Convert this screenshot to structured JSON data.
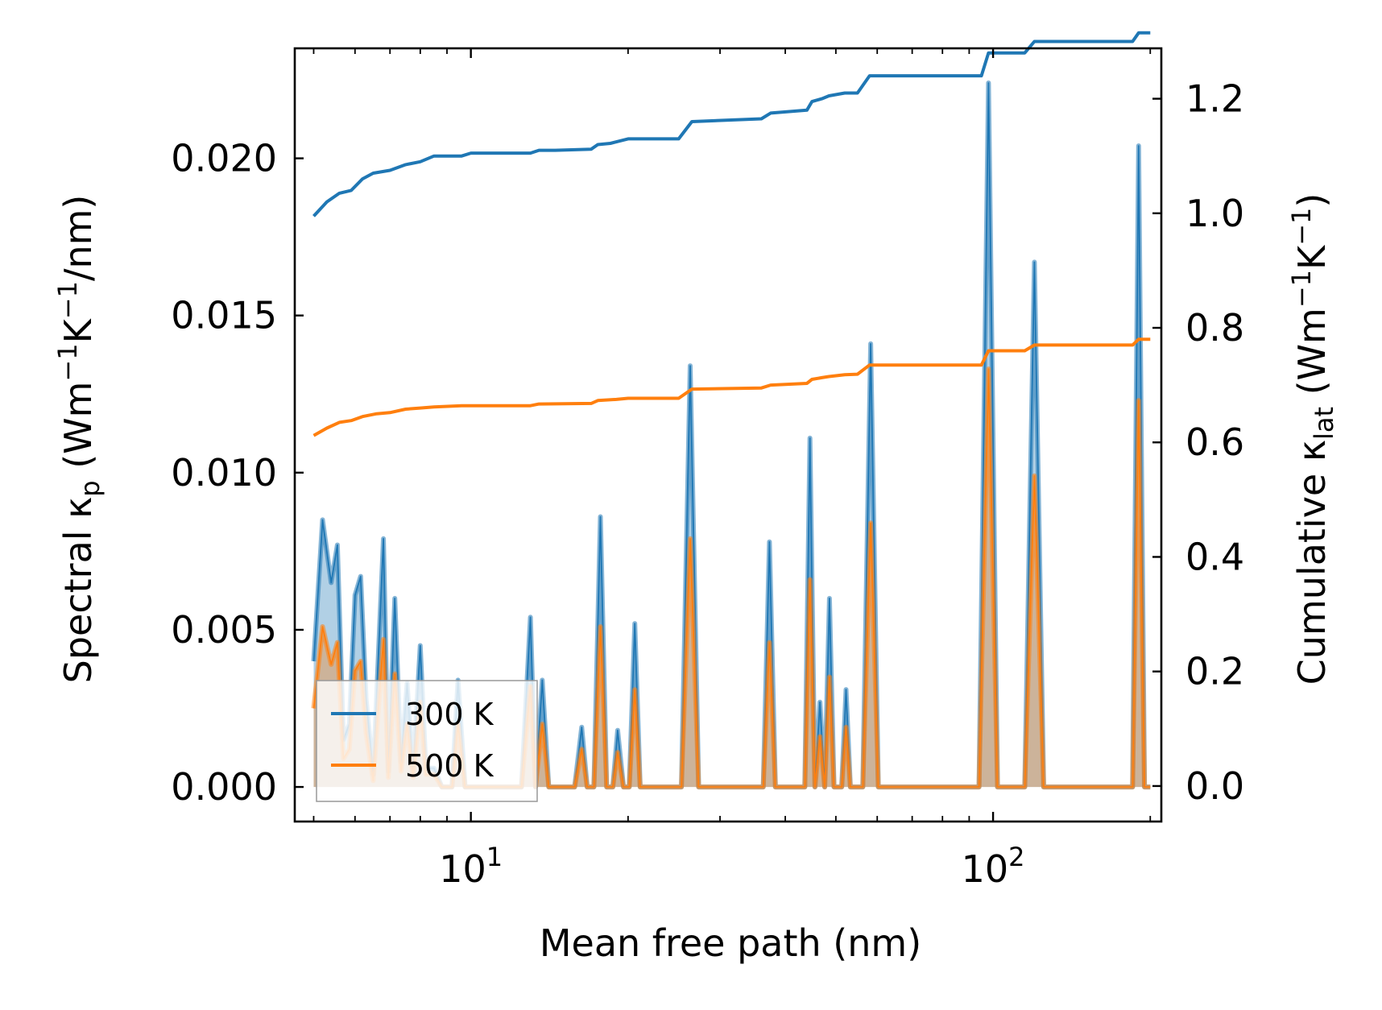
{
  "chart_data": {
    "type": "line",
    "xscale": "log",
    "xlabel": "Mean free path (nm)",
    "ylabel_left": {
      "main": "Spectral κ",
      "sub": "p",
      "units_open": " (Wm",
      "sup1": "−1",
      "mid": "K",
      "sup2": "−1",
      "units_close": "/nm)"
    },
    "ylabel_right": {
      "main": "Cumulative κ",
      "sub": "lat",
      "units_open": " (Wm",
      "sup1": "−1",
      "mid": "K",
      "sup2": "−1",
      "units_close": ")"
    },
    "xlim": [
      4.6,
      210
    ],
    "ylim_left": [
      -0.0011,
      0.0235
    ],
    "ylim_right": [
      -0.062,
      1.288
    ],
    "x_ticks": [
      {
        "value": 10,
        "base": "10",
        "exp": "1"
      },
      {
        "value": 100,
        "base": "10",
        "exp": "2"
      }
    ],
    "y_ticks_left": [
      "0.000",
      "0.005",
      "0.010",
      "0.015",
      "0.020"
    ],
    "y_ticks_right": [
      "0.0",
      "0.2",
      "0.4",
      "0.6",
      "0.8",
      "1.0",
      "1.2"
    ],
    "legend": {
      "location": "lower-left",
      "entries": [
        "300 K",
        "500 K"
      ]
    },
    "series": [
      {
        "name": "300 K",
        "color": "#1f77b4",
        "spectral": [
          [
            5,
            0.004
          ],
          [
            5.2,
            0.0085
          ],
          [
            5.4,
            0.0065
          ],
          [
            5.55,
            0.0077
          ],
          [
            5.7,
            0.0015
          ],
          [
            5.85,
            0.002
          ],
          [
            6.0,
            0.0061
          ],
          [
            6.15,
            0.0067
          ],
          [
            6.3,
            0.0028
          ],
          [
            6.5,
            0.0004
          ],
          [
            6.8,
            0.0079
          ],
          [
            6.95,
            0.0005
          ],
          [
            7.15,
            0.006
          ],
          [
            7.35,
            0.0008
          ],
          [
            7.55,
            0.0033
          ],
          [
            7.75,
            0.0005
          ],
          [
            8.0,
            0.0045
          ],
          [
            8.2,
            0.0006
          ],
          [
            8.5,
            0.0006
          ],
          [
            8.8,
            0.0
          ],
          [
            9.2,
            0.0
          ],
          [
            9.45,
            0.0034
          ],
          [
            9.75,
            0.0
          ],
          [
            12.5,
            0.0
          ],
          [
            13.0,
            0.0054
          ],
          [
            13.3,
            0.0
          ],
          [
            13.7,
            0.0034
          ],
          [
            14.1,
            0.0
          ],
          [
            15.8,
            0.0
          ],
          [
            16.3,
            0.0019
          ],
          [
            16.7,
            0.0
          ],
          [
            17.2,
            0.0
          ],
          [
            17.7,
            0.0086
          ],
          [
            18.2,
            0.0
          ],
          [
            18.7,
            0.0
          ],
          [
            19.1,
            0.0018
          ],
          [
            19.6,
            0.0
          ],
          [
            20.1,
            0.0
          ],
          [
            20.6,
            0.0052
          ],
          [
            21.1,
            0.0
          ],
          [
            25.3,
            0.0
          ],
          [
            26.3,
            0.0134
          ],
          [
            27.3,
            0.0
          ],
          [
            36.3,
            0.0
          ],
          [
            37.3,
            0.0078
          ],
          [
            38.3,
            0.0
          ],
          [
            43.6,
            0.0
          ],
          [
            44.6,
            0.0111
          ],
          [
            45.6,
            0.0
          ],
          [
            46.6,
            0.0027
          ],
          [
            47.6,
            0.0
          ],
          [
            48.6,
            0.006
          ],
          [
            49.6,
            0.0
          ],
          [
            51.3,
            0.0
          ],
          [
            52.3,
            0.0031
          ],
          [
            53.3,
            0.0
          ],
          [
            56.3,
            0.0
          ],
          [
            58.3,
            0.0141
          ],
          [
            60.3,
            0.0
          ],
          [
            94,
            0.0
          ],
          [
            98,
            0.0224
          ],
          [
            102,
            0.0
          ],
          [
            115,
            0.0
          ],
          [
            120,
            0.0167
          ],
          [
            125,
            0.0
          ],
          [
            185,
            0.0
          ],
          [
            190,
            0.0204
          ],
          [
            195,
            0.0
          ],
          [
            200,
            0.0
          ]
        ],
        "cumulative": [
          [
            5,
            0.995
          ],
          [
            5.3,
            1.02
          ],
          [
            5.6,
            1.035
          ],
          [
            5.9,
            1.04
          ],
          [
            6.2,
            1.06
          ],
          [
            6.5,
            1.07
          ],
          [
            7.0,
            1.075
          ],
          [
            7.5,
            1.085
          ],
          [
            8.0,
            1.09
          ],
          [
            8.5,
            1.1
          ],
          [
            9.0,
            1.1
          ],
          [
            9.6,
            1.1
          ],
          [
            10.0,
            1.105
          ],
          [
            13.0,
            1.105
          ],
          [
            13.5,
            1.11
          ],
          [
            14.5,
            1.11
          ],
          [
            17,
            1.112
          ],
          [
            17.5,
            1.12
          ],
          [
            18.5,
            1.122
          ],
          [
            20,
            1.13
          ],
          [
            25,
            1.13
          ],
          [
            26.5,
            1.16
          ],
          [
            36,
            1.165
          ],
          [
            37.5,
            1.175
          ],
          [
            44,
            1.18
          ],
          [
            45,
            1.195
          ],
          [
            47,
            1.2
          ],
          [
            48.5,
            1.205
          ],
          [
            52,
            1.21
          ],
          [
            55,
            1.21
          ],
          [
            58,
            1.24
          ],
          [
            95,
            1.24
          ],
          [
            98,
            1.28
          ],
          [
            115,
            1.28
          ],
          [
            120,
            1.3
          ],
          [
            185,
            1.3
          ],
          [
            190,
            1.315
          ],
          [
            200,
            1.315
          ]
        ]
      },
      {
        "name": "500 K",
        "color": "#ff7f0e",
        "spectral": [
          [
            5,
            0.0025
          ],
          [
            5.2,
            0.0051
          ],
          [
            5.4,
            0.0039
          ],
          [
            5.55,
            0.0046
          ],
          [
            5.7,
            0.0009
          ],
          [
            5.85,
            0.0012
          ],
          [
            6.0,
            0.0037
          ],
          [
            6.15,
            0.004
          ],
          [
            6.3,
            0.0017
          ],
          [
            6.5,
            0.0002
          ],
          [
            6.8,
            0.0047
          ],
          [
            6.95,
            0.0003
          ],
          [
            7.15,
            0.0036
          ],
          [
            7.35,
            0.0005
          ],
          [
            7.55,
            0.002
          ],
          [
            7.75,
            0.0003
          ],
          [
            8.0,
            0.0027
          ],
          [
            8.2,
            0.0004
          ],
          [
            8.5,
            0.0004
          ],
          [
            8.8,
            0.0
          ],
          [
            9.2,
            0.0
          ],
          [
            9.45,
            0.002
          ],
          [
            9.75,
            0.0
          ],
          [
            12.5,
            0.0
          ],
          [
            13.0,
            0.0032
          ],
          [
            13.3,
            0.0
          ],
          [
            13.7,
            0.002
          ],
          [
            14.1,
            0.0
          ],
          [
            15.8,
            0.0
          ],
          [
            16.3,
            0.0012
          ],
          [
            16.7,
            0.0
          ],
          [
            17.2,
            0.0
          ],
          [
            17.7,
            0.0051
          ],
          [
            18.2,
            0.0
          ],
          [
            18.7,
            0.0
          ],
          [
            19.1,
            0.0011
          ],
          [
            19.6,
            0.0
          ],
          [
            20.1,
            0.0
          ],
          [
            20.6,
            0.0031
          ],
          [
            21.1,
            0.0
          ],
          [
            25.3,
            0.0
          ],
          [
            26.3,
            0.0079
          ],
          [
            27.3,
            0.0
          ],
          [
            36.3,
            0.0
          ],
          [
            37.3,
            0.0046
          ],
          [
            38.3,
            0.0
          ],
          [
            43.6,
            0.0
          ],
          [
            44.6,
            0.0066
          ],
          [
            45.6,
            0.0
          ],
          [
            46.6,
            0.0016
          ],
          [
            47.6,
            0.0
          ],
          [
            48.6,
            0.0035
          ],
          [
            49.6,
            0.0
          ],
          [
            51.3,
            0.0
          ],
          [
            52.3,
            0.0019
          ],
          [
            53.3,
            0.0
          ],
          [
            56.3,
            0.0
          ],
          [
            58.3,
            0.0084
          ],
          [
            60.3,
            0.0
          ],
          [
            94,
            0.0
          ],
          [
            98,
            0.0133
          ],
          [
            102,
            0.0
          ],
          [
            115,
            0.0
          ],
          [
            120,
            0.0099
          ],
          [
            125,
            0.0
          ],
          [
            185,
            0.0
          ],
          [
            190,
            0.0123
          ],
          [
            195,
            0.0
          ],
          [
            200,
            0.0
          ]
        ],
        "cumulative": [
          [
            5,
            0.612
          ],
          [
            5.3,
            0.625
          ],
          [
            5.6,
            0.635
          ],
          [
            5.9,
            0.638
          ],
          [
            6.2,
            0.645
          ],
          [
            6.6,
            0.65
          ],
          [
            7.0,
            0.652
          ],
          [
            7.5,
            0.658
          ],
          [
            8.0,
            0.66
          ],
          [
            8.5,
            0.662
          ],
          [
            9.6,
            0.664
          ],
          [
            13.0,
            0.664
          ],
          [
            13.5,
            0.667
          ],
          [
            17,
            0.668
          ],
          [
            17.5,
            0.673
          ],
          [
            19,
            0.675
          ],
          [
            20,
            0.677
          ],
          [
            25,
            0.677
          ],
          [
            26.5,
            0.693
          ],
          [
            36,
            0.695
          ],
          [
            37.5,
            0.7
          ],
          [
            44,
            0.703
          ],
          [
            45,
            0.71
          ],
          [
            47,
            0.713
          ],
          [
            48.5,
            0.715
          ],
          [
            52,
            0.718
          ],
          [
            55,
            0.719
          ],
          [
            58,
            0.735
          ],
          [
            95,
            0.735
          ],
          [
            98,
            0.76
          ],
          [
            115,
            0.76
          ],
          [
            120,
            0.77
          ],
          [
            185,
            0.77
          ],
          [
            190,
            0.78
          ],
          [
            200,
            0.78
          ]
        ]
      }
    ]
  }
}
